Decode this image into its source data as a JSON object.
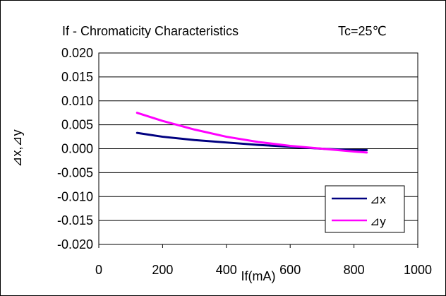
{
  "chart_data": {
    "type": "line",
    "title": "If - Chromaticity Characteristics",
    "condition": "Tc=25℃",
    "xlabel": "If(mA)",
    "ylabel": "⊿x,⊿y",
    "xlim": [
      0,
      1000
    ],
    "ylim": [
      -0.02,
      0.02
    ],
    "xticks": [
      "0",
      "200",
      "400",
      "600",
      "800",
      "1000"
    ],
    "yticks": [
      "0.020",
      "0.015",
      "0.010",
      "0.005",
      "0.000",
      "-0.005",
      "-0.010",
      "-0.015",
      "-0.020"
    ],
    "grid": "horizontal",
    "legend_position": "bottom-right",
    "series": [
      {
        "name": "⊿x",
        "color": "#000080",
        "x": [
          120,
          200,
          300,
          400,
          500,
          600,
          700,
          800,
          840
        ],
        "y": [
          0.0033,
          0.0025,
          0.0018,
          0.0013,
          0.0008,
          0.0004,
          0.0,
          -0.0003,
          -0.0003
        ]
      },
      {
        "name": "⊿y",
        "color": "#ff00ff",
        "x": [
          120,
          200,
          300,
          400,
          500,
          600,
          700,
          800,
          840
        ],
        "y": [
          0.0075,
          0.0058,
          0.004,
          0.0025,
          0.0014,
          0.0006,
          0.0,
          -0.0006,
          -0.0008
        ]
      }
    ]
  }
}
